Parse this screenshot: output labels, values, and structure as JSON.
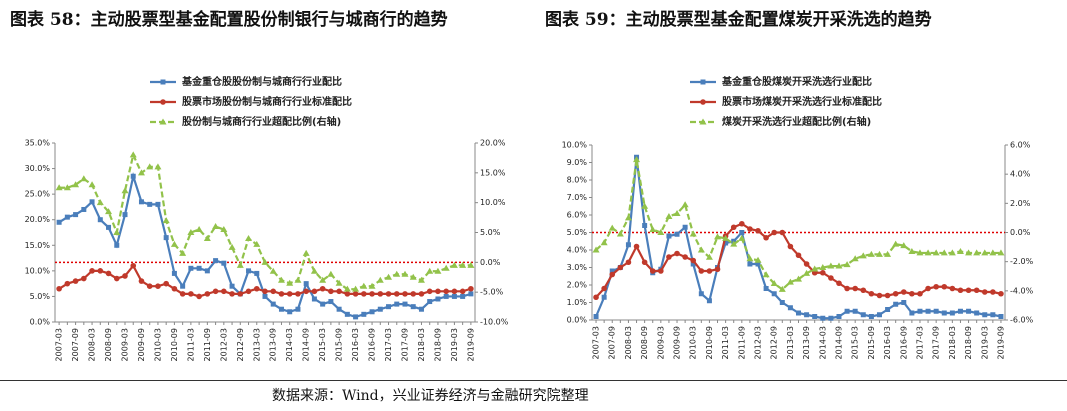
{
  "source": "数据来源：Wind，兴业证券经济与金融研究院整理",
  "chart_data": [
    {
      "type": "line",
      "title": "图表 58：主动股票型基金配置股份制银行与城商行的趋势",
      "categories": [
        "2007-03",
        null,
        "2007-09",
        null,
        "2008-03",
        null,
        "2008-09",
        null,
        "2009-03",
        null,
        "2009-09",
        null,
        "2010-03",
        null,
        "2010-09",
        null,
        "2011-03",
        null,
        "2011-09",
        null,
        "2012-03",
        null,
        "2012-09",
        null,
        "2013-03",
        null,
        "2013-09",
        null,
        "2014-03",
        null,
        "2014-09",
        null,
        "2015-03",
        null,
        "2015-09",
        null,
        "2016-03",
        null,
        "2016-09",
        null,
        "2017-03",
        null,
        "2017-09",
        null,
        "2018-03",
        null,
        "2018-09",
        null,
        "2019-03",
        null,
        "2019-09"
      ],
      "series": [
        {
          "name": "基金重仓股股份制与城商行行业配比",
          "color": "#4a7ebb",
          "marker": "square",
          "dash": false,
          "values": [
            19.5,
            20.5,
            21,
            22,
            23.5,
            20,
            18.5,
            15,
            21,
            28.5,
            23.5,
            23,
            23,
            16.5,
            9.5,
            7,
            10.5,
            10.5,
            10,
            12,
            11.5,
            7,
            5.5,
            10,
            9.5,
            5,
            3.5,
            2.5,
            2,
            2.5,
            7.5,
            4.5,
            3.5,
            4,
            2.5,
            1.5,
            1,
            1.5,
            2,
            2.5,
            3,
            3.5,
            3.5,
            3,
            2.5,
            4,
            4.5,
            5,
            5,
            5,
            5.5
          ]
        },
        {
          "name": "股票市场股份制与城商行行业标准配比",
          "color": "#c0392b",
          "marker": "circle",
          "dash": false,
          "values": [
            6.5,
            7.5,
            8,
            8.5,
            10,
            10,
            9.5,
            8.5,
            9,
            11,
            8,
            7,
            7,
            7.5,
            6.5,
            5.5,
            5.5,
            5,
            5.5,
            6,
            6,
            5.5,
            5.5,
            6,
            6.5,
            6,
            6,
            5.5,
            5.5,
            5.5,
            6,
            6,
            6.5,
            6,
            6,
            5.5,
            5.5,
            5.5,
            5.5,
            5.5,
            5.5,
            5.5,
            5.5,
            5.5,
            5.5,
            6,
            6,
            6,
            6,
            6,
            6.5
          ]
        },
        {
          "name": "股份制与城商行行业超配比例(右轴)",
          "color": "#92c24a",
          "marker": "triangle",
          "dash": true,
          "axis": "y2",
          "values": [
            12.5,
            12.5,
            13,
            14,
            13,
            10,
            8.5,
            5,
            12,
            18,
            15,
            16,
            16,
            7,
            3,
            1.5,
            5,
            5.5,
            4,
            6,
            5.5,
            2.5,
            -0.5,
            4,
            3,
            0,
            -1.5,
            -3,
            -3.5,
            -3,
            1.5,
            -1.5,
            -3,
            -2,
            -3.5,
            -4.5,
            -4.5,
            -4,
            -4,
            -3,
            -2.5,
            -2,
            -2,
            -2.5,
            -3,
            -1.5,
            -1.5,
            -1,
            -0.5,
            -0.5,
            -0.5
          ]
        }
      ],
      "ylim": [
        0,
        35
      ],
      "yticks": [
        {
          "value": 0,
          "label": "0.0%"
        },
        {
          "value": 5,
          "label": "5.0%"
        },
        {
          "value": 10,
          "label": "10.0%"
        },
        {
          "value": 15,
          "label": "15.0%"
        },
        {
          "value": 20,
          "label": "20.0%"
        },
        {
          "value": 25,
          "label": "25.0%"
        },
        {
          "value": 30,
          "label": "30.0%"
        },
        {
          "value": 35,
          "label": "35.0%"
        }
      ],
      "y2lim": [
        -10,
        20
      ],
      "y2ticks": [
        {
          "value": -10,
          "label": "-10.0%"
        },
        {
          "value": -5,
          "label": "-5.0%"
        },
        {
          "value": 0,
          "label": "0.0%"
        },
        {
          "value": 5,
          "label": "5.0%"
        },
        {
          "value": 10,
          "label": "10.0%"
        },
        {
          "value": 15,
          "label": "15.0%"
        },
        {
          "value": 20,
          "label": "20.0%"
        }
      ],
      "reference_line": {
        "axis": "y2",
        "value": 0,
        "color": "#e00000"
      },
      "grid": false
    },
    {
      "type": "line",
      "title": "图表 59：主动股票型基金配置煤炭开采洗选的趋势",
      "categories": [
        "2007-03",
        null,
        "2007-09",
        null,
        "2008-03",
        null,
        "2008-09",
        null,
        "2009-03",
        null,
        "2009-09",
        null,
        "2010-03",
        null,
        "2010-09",
        null,
        "2011-03",
        null,
        "2011-09",
        null,
        "2012-03",
        null,
        "2012-09",
        null,
        "2013-03",
        null,
        "2013-09",
        null,
        "2014-03",
        null,
        "2014-09",
        null,
        "2015-03",
        null,
        "2015-09",
        null,
        "2016-03",
        null,
        "2016-09",
        null,
        "2017-03",
        null,
        "2017-09",
        null,
        "2018-03",
        null,
        "2018-09",
        null,
        "2019-03",
        null,
        "2019-09"
      ],
      "series": [
        {
          "name": "基金重仓股煤炭开采洗选行业配比",
          "color": "#4a7ebb",
          "marker": "square",
          "dash": false,
          "values": [
            0.2,
            1.3,
            2.8,
            3,
            4.3,
            9.3,
            5.4,
            2.7,
            2.9,
            4.8,
            4.9,
            5.3,
            3.2,
            1.5,
            1.1,
            3,
            4.4,
            4.5,
            5,
            3.2,
            3.2,
            1.8,
            1.5,
            1,
            0.7,
            0.4,
            0.3,
            0.2,
            0.1,
            0.1,
            0.2,
            0.5,
            0.5,
            0.3,
            0.2,
            0.3,
            0.6,
            0.9,
            1,
            0.4,
            0.5,
            0.5,
            0.5,
            0.4,
            0.4,
            0.5,
            0.5,
            0.4,
            0.3,
            0.3,
            0.2
          ]
        },
        {
          "name": "股票市场煤炭开采洗选行业标准配比",
          "color": "#c0392b",
          "marker": "circle",
          "dash": false,
          "values": [
            1.3,
            1.8,
            2.6,
            3,
            3.3,
            4.2,
            3.3,
            2.8,
            2.8,
            3.6,
            3.8,
            3.6,
            3.4,
            2.8,
            2.8,
            2.9,
            4.8,
            5.3,
            5.5,
            5.2,
            5.1,
            4.7,
            5,
            5,
            4.2,
            3.7,
            3.2,
            2.7,
            2.7,
            2.4,
            2.1,
            1.8,
            1.8,
            1.7,
            1.5,
            1.4,
            1.4,
            1.5,
            1.6,
            1.5,
            1.5,
            1.8,
            1.9,
            1.9,
            1.8,
            1.7,
            1.7,
            1.7,
            1.6,
            1.6,
            1.5
          ]
        },
        {
          "name": "煤炭开采洗选行业超配比例(右轴)",
          "color": "#92c24a",
          "marker": "triangle",
          "dash": true,
          "axis": "y2",
          "values": [
            -1.2,
            -0.7,
            0.3,
            -0.1,
            1,
            5,
            1.8,
            0.2,
            0,
            1.1,
            1.3,
            1.9,
            -0.1,
            -1.2,
            -1.7,
            -0.3,
            -0.4,
            -0.8,
            -0.4,
            -1.8,
            -1.9,
            -2.9,
            -3.5,
            -3.9,
            -3.4,
            -3.2,
            -2.8,
            -2.5,
            -2.4,
            -2.3,
            -2.3,
            -2.2,
            -1.8,
            -1.6,
            -1.5,
            -1.5,
            -1.5,
            -0.8,
            -0.9,
            -1.3,
            -1.4,
            -1.4,
            -1.4,
            -1.4,
            -1.4,
            -1.3,
            -1.4,
            -1.4,
            -1.4,
            -1.4,
            -1.4
          ]
        }
      ],
      "ylim": [
        0,
        10
      ],
      "yticks": [
        {
          "value": 0,
          "label": "0.0%"
        },
        {
          "value": 1,
          "label": "1.0%"
        },
        {
          "value": 2,
          "label": "2.0%"
        },
        {
          "value": 3,
          "label": "3.0%"
        },
        {
          "value": 4,
          "label": "4.0%"
        },
        {
          "value": 5,
          "label": "5.0%"
        },
        {
          "value": 6,
          "label": "6.0%"
        },
        {
          "value": 7,
          "label": "7.0%"
        },
        {
          "value": 8,
          "label": "8.0%"
        },
        {
          "value": 9,
          "label": "9.0%"
        },
        {
          "value": 10,
          "label": "10.0%"
        }
      ],
      "y2lim": [
        -6,
        6
      ],
      "y2ticks": [
        {
          "value": -6,
          "label": "-6.0%"
        },
        {
          "value": -4,
          "label": "-4.0%"
        },
        {
          "value": -2,
          "label": "-2.0%"
        },
        {
          "value": 0,
          "label": "0.0%"
        },
        {
          "value": 2,
          "label": "2.0%"
        },
        {
          "value": 4,
          "label": "4.0%"
        },
        {
          "value": 6,
          "label": "6.0%"
        }
      ],
      "reference_line": {
        "axis": "y2",
        "value": 0,
        "color": "#e00000"
      },
      "grid": false
    }
  ]
}
